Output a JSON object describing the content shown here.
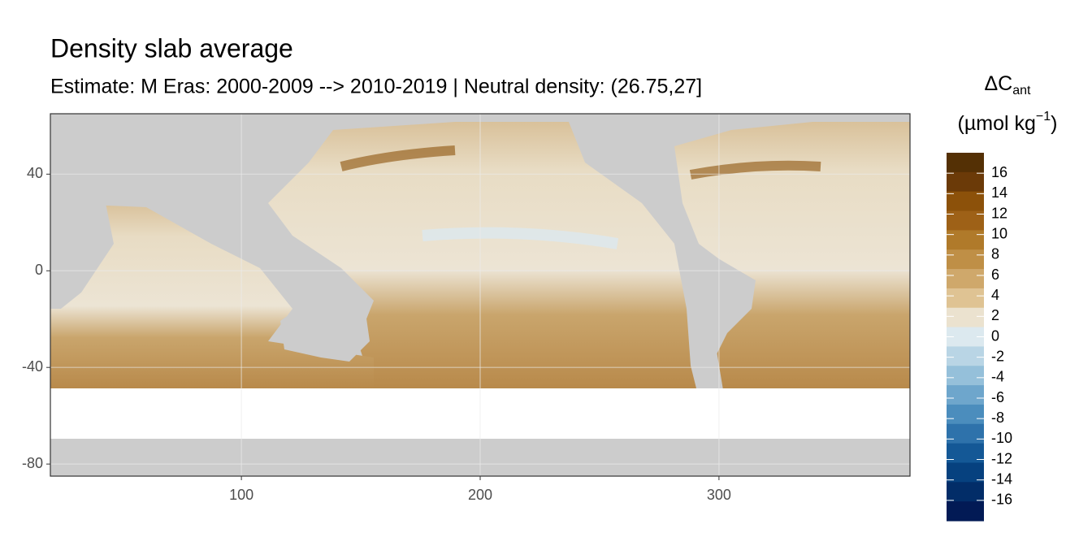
{
  "chart_data": {
    "type": "heatmap",
    "title": "Density slab average",
    "subtitle": "Estimate: M Eras: 2000-2009 --> 2010-2019 | Neutral density: (26.75,27]",
    "xlim": [
      20,
      380
    ],
    "xticks": [
      100,
      200,
      300
    ],
    "ylim": [
      -85,
      65
    ],
    "yticks": [
      40,
      0,
      -40,
      -80
    ],
    "grid": true,
    "legend": {
      "title": "ΔC",
      "title_sub": "ant",
      "unit": "(µmol kg",
      "unit_sup": "−1",
      "unit_end": ")",
      "lim": [
        -18,
        18
      ],
      "ticks": [
        16,
        14,
        12,
        10,
        8,
        6,
        4,
        2,
        0,
        -2,
        -4,
        -6,
        -8,
        -10,
        -12,
        -14,
        -16
      ],
      "colors": [
        "#543005",
        "#6b3a08",
        "#8c510a",
        "#9e6117",
        "#b07a2a",
        "#bf8f46",
        "#cfa86b",
        "#dfc393",
        "#ebe2cf",
        "#dce9ef",
        "#b9d5e5",
        "#95c0da",
        "#6ea6cc",
        "#4b8dbd",
        "#2e72ab",
        "#145896",
        "#06417f",
        "#022d68",
        "#021a55"
      ]
    }
  }
}
